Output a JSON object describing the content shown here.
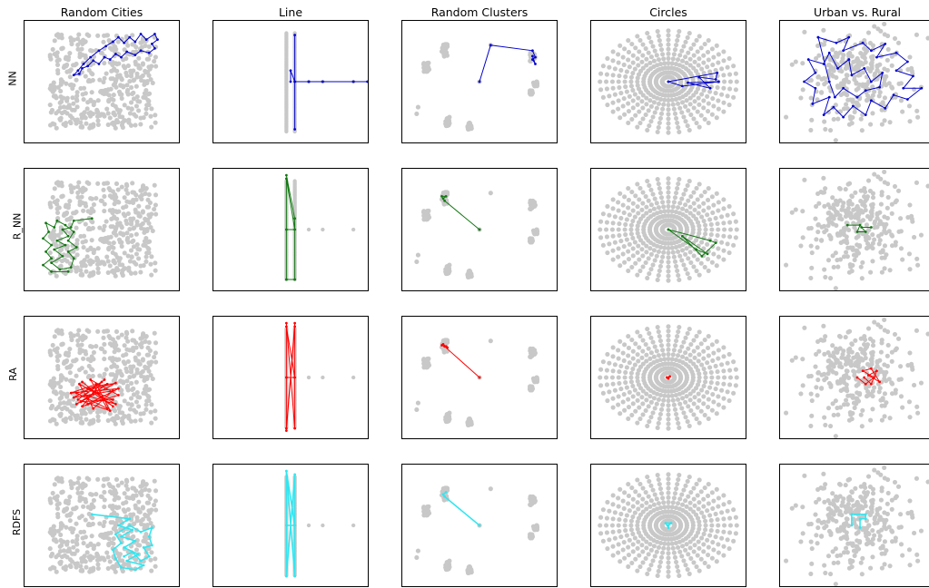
{
  "chart_data": {
    "type": "scatter",
    "grid": false,
    "columns": [
      "Random Cities",
      "Line",
      "Random Clusters",
      "Circles",
      "Urban vs. Rural"
    ],
    "rows": [
      {
        "label": "NN",
        "color": "#0000cc"
      },
      {
        "label": "R_NN",
        "color": "#117711"
      },
      {
        "label": "RA",
        "color": "#ff0000"
      },
      {
        "label": "RDFS",
        "color": "#33e6f0"
      }
    ],
    "city_color": "#c8c8c8",
    "scenarios": {
      "random_cities": {
        "count": 420,
        "xlim": [
          0,
          1
        ],
        "ylim": [
          0,
          1
        ]
      },
      "line": {
        "vertical_x": [
          0.47,
          0.53
        ],
        "vertical_y": [
          0.05,
          0.95
        ],
        "extra_points": [
          [
            0.53,
            0.5
          ],
          [
            0.63,
            0.5
          ],
          [
            0.73,
            0.5
          ],
          [
            0.95,
            0.5
          ]
        ]
      },
      "random_clusters": {
        "clusters": [
          [
            0.25,
            0.78,
            0.02,
            0.06
          ],
          [
            0.12,
            0.63,
            0.02,
            0.04
          ],
          [
            0.27,
            0.14,
            0.015,
            0.04
          ],
          [
            0.43,
            0.1,
            0.015,
            0.03
          ],
          [
            0.88,
            0.72,
            0.02,
            0.04
          ],
          [
            0.9,
            0.48,
            0.015,
            0.02
          ],
          [
            0.87,
            0.4,
            0.01,
            0.02
          ]
        ],
        "singles": [
          [
            0.58,
            0.83
          ],
          [
            0.06,
            0.27
          ],
          [
            0.05,
            0.21
          ],
          [
            0.5,
            0.5
          ]
        ]
      },
      "circles": {
        "rings": 11,
        "spokes": 40,
        "center": [
          0.5,
          0.5
        ],
        "rx": 0.49,
        "ry": 0.46
      },
      "urban_rural": {
        "urban": 260,
        "rural": 40,
        "center": [
          0.5,
          0.52
        ]
      }
    },
    "routes": {
      "NN": {
        "random_cities": [
          [
            0.58,
            0.86
          ],
          [
            0.62,
            0.9
          ],
          [
            0.66,
            0.85
          ],
          [
            0.7,
            0.9
          ],
          [
            0.74,
            0.86
          ],
          [
            0.78,
            0.93
          ],
          [
            0.82,
            0.88
          ],
          [
            0.88,
            0.93
          ],
          [
            0.9,
            0.88
          ],
          [
            0.86,
            0.84
          ],
          [
            0.88,
            0.8
          ],
          [
            0.84,
            0.76
          ],
          [
            0.78,
            0.78
          ],
          [
            0.74,
            0.74
          ],
          [
            0.68,
            0.77
          ],
          [
            0.64,
            0.72
          ],
          [
            0.6,
            0.75
          ],
          [
            0.56,
            0.7
          ],
          [
            0.52,
            0.72
          ],
          [
            0.48,
            0.66
          ],
          [
            0.44,
            0.69
          ],
          [
            0.4,
            0.64
          ],
          [
            0.36,
            0.62
          ],
          [
            0.34,
            0.57
          ],
          [
            0.3,
            0.56
          ],
          [
            0.33,
            0.6
          ],
          [
            0.37,
            0.66
          ],
          [
            0.42,
            0.72
          ],
          [
            0.48,
            0.78
          ],
          [
            0.53,
            0.82
          ],
          [
            0.58,
            0.86
          ]
        ],
        "line": [
          [
            0.53,
            0.92
          ],
          [
            0.53,
            0.07
          ],
          [
            0.53,
            0.5
          ],
          [
            0.63,
            0.5
          ],
          [
            0.73,
            0.5
          ],
          [
            0.95,
            0.5
          ],
          [
            1.05,
            0.5
          ],
          [
            0.53,
            0.5
          ],
          [
            0.5,
            0.6
          ],
          [
            0.5,
            0.5
          ]
        ],
        "random_clusters": [
          [
            0.5,
            0.5
          ],
          [
            0.58,
            0.83
          ],
          [
            0.88,
            0.78
          ],
          [
            0.9,
            0.72
          ],
          [
            0.88,
            0.7
          ],
          [
            0.9,
            0.66
          ],
          [
            0.88,
            0.73
          ]
        ],
        "circles": [
          [
            0.5,
            0.5
          ],
          [
            0.85,
            0.58
          ],
          [
            0.84,
            0.52
          ],
          [
            0.72,
            0.54
          ],
          [
            0.8,
            0.44
          ],
          [
            0.64,
            0.49
          ],
          [
            0.86,
            0.5
          ],
          [
            0.6,
            0.46
          ],
          [
            0.5,
            0.5
          ]
        ],
        "urban_rural": [
          [
            0.22,
            0.9
          ],
          [
            0.35,
            0.85
          ],
          [
            0.44,
            0.9
          ],
          [
            0.4,
            0.78
          ],
          [
            0.54,
            0.85
          ],
          [
            0.6,
            0.78
          ],
          [
            0.7,
            0.84
          ],
          [
            0.64,
            0.72
          ],
          [
            0.78,
            0.76
          ],
          [
            0.86,
            0.68
          ],
          [
            0.78,
            0.6
          ],
          [
            0.9,
            0.55
          ],
          [
            0.83,
            0.44
          ],
          [
            0.96,
            0.44
          ],
          [
            0.86,
            0.34
          ],
          [
            0.76,
            0.38
          ],
          [
            0.7,
            0.26
          ],
          [
            0.6,
            0.33
          ],
          [
            0.56,
            0.2
          ],
          [
            0.47,
            0.28
          ],
          [
            0.4,
            0.18
          ],
          [
            0.33,
            0.27
          ],
          [
            0.26,
            0.2
          ],
          [
            0.3,
            0.36
          ],
          [
            0.18,
            0.3
          ],
          [
            0.2,
            0.44
          ],
          [
            0.12,
            0.5
          ],
          [
            0.2,
            0.58
          ],
          [
            0.15,
            0.7
          ],
          [
            0.26,
            0.66
          ],
          [
            0.3,
            0.76
          ],
          [
            0.36,
            0.62
          ],
          [
            0.44,
            0.7
          ],
          [
            0.46,
            0.56
          ],
          [
            0.55,
            0.62
          ],
          [
            0.6,
            0.5
          ],
          [
            0.68,
            0.58
          ],
          [
            0.66,
            0.45
          ],
          [
            0.56,
            0.42
          ],
          [
            0.5,
            0.36
          ],
          [
            0.4,
            0.44
          ],
          [
            0.34,
            0.36
          ],
          [
            0.3,
            0.5
          ],
          [
            0.22,
            0.9
          ]
        ]
      },
      "R_NN": {
        "random_cities": [
          [
            0.43,
            0.6
          ],
          [
            0.3,
            0.58
          ],
          [
            0.28,
            0.52
          ],
          [
            0.22,
            0.5
          ],
          [
            0.26,
            0.44
          ],
          [
            0.18,
            0.4
          ],
          [
            0.24,
            0.36
          ],
          [
            0.16,
            0.32
          ],
          [
            0.22,
            0.26
          ],
          [
            0.14,
            0.2
          ],
          [
            0.2,
            0.14
          ],
          [
            0.28,
            0.16
          ],
          [
            0.3,
            0.24
          ],
          [
            0.26,
            0.3
          ],
          [
            0.32,
            0.34
          ],
          [
            0.26,
            0.4
          ],
          [
            0.3,
            0.48
          ],
          [
            0.24,
            0.54
          ],
          [
            0.18,
            0.58
          ],
          [
            0.16,
            0.52
          ],
          [
            0.1,
            0.56
          ],
          [
            0.12,
            0.48
          ],
          [
            0.08,
            0.42
          ],
          [
            0.14,
            0.36
          ],
          [
            0.1,
            0.3
          ],
          [
            0.14,
            0.24
          ],
          [
            0.08,
            0.18
          ],
          [
            0.14,
            0.12
          ],
          [
            0.26,
            0.12
          ]
        ],
        "line": [
          [
            0.47,
            0.99
          ],
          [
            0.53,
            0.6
          ],
          [
            0.53,
            0.05
          ],
          [
            0.47,
            0.05
          ],
          [
            0.47,
            0.96
          ],
          [
            0.53,
            0.5
          ],
          [
            0.47,
            0.5
          ]
        ],
        "random_clusters": [
          [
            0.5,
            0.5
          ],
          [
            0.25,
            0.76
          ],
          [
            0.24,
            0.78
          ],
          [
            0.26,
            0.8
          ],
          [
            0.23,
            0.8
          ]
        ],
        "circles": [
          [
            0.5,
            0.5
          ],
          [
            0.8,
            0.4
          ],
          [
            0.84,
            0.38
          ],
          [
            0.74,
            0.26
          ],
          [
            0.6,
            0.44
          ],
          [
            0.78,
            0.28
          ],
          [
            0.7,
            0.32
          ],
          [
            0.5,
            0.5
          ]
        ],
        "urban_rural": [
          [
            0.43,
            0.54
          ],
          [
            0.52,
            0.54
          ],
          [
            0.5,
            0.48
          ],
          [
            0.56,
            0.48
          ],
          [
            0.53,
            0.52
          ],
          [
            0.6,
            0.52
          ]
        ]
      },
      "RA": {
        "random_cities": [
          [
            0.4,
            0.4
          ],
          [
            0.58,
            0.3
          ],
          [
            0.35,
            0.28
          ],
          [
            0.6,
            0.45
          ],
          [
            0.32,
            0.36
          ],
          [
            0.54,
            0.22
          ],
          [
            0.42,
            0.48
          ],
          [
            0.62,
            0.34
          ],
          [
            0.36,
            0.24
          ],
          [
            0.5,
            0.46
          ],
          [
            0.3,
            0.32
          ],
          [
            0.58,
            0.38
          ],
          [
            0.44,
            0.22
          ],
          [
            0.34,
            0.44
          ],
          [
            0.6,
            0.26
          ],
          [
            0.38,
            0.34
          ],
          [
            0.52,
            0.48
          ],
          [
            0.33,
            0.3
          ],
          [
            0.56,
            0.2
          ],
          [
            0.46,
            0.44
          ],
          [
            0.28,
            0.36
          ],
          [
            0.62,
            0.4
          ],
          [
            0.4,
            0.26
          ],
          [
            0.5,
            0.32
          ],
          [
            0.36,
            0.46
          ],
          [
            0.58,
            0.24
          ],
          [
            0.44,
            0.36
          ],
          [
            0.32,
            0.26
          ],
          [
            0.54,
            0.44
          ],
          [
            0.4,
            0.4
          ]
        ],
        "line": [
          [
            0.47,
            0.99
          ],
          [
            0.53,
            0.04
          ],
          [
            0.53,
            0.99
          ],
          [
            0.47,
            0.04
          ],
          [
            0.47,
            0.96
          ],
          [
            0.53,
            0.5
          ],
          [
            0.47,
            0.5
          ],
          [
            0.47,
            0.02
          ],
          [
            0.53,
            0.96
          ]
        ],
        "random_clusters": [
          [
            0.5,
            0.5
          ],
          [
            0.25,
            0.78
          ],
          [
            0.23,
            0.79
          ],
          [
            0.27,
            0.77
          ],
          [
            0.24,
            0.8
          ],
          [
            0.26,
            0.78
          ]
        ],
        "circles": [
          [
            0.49,
            0.5
          ],
          [
            0.51,
            0.51
          ],
          [
            0.5,
            0.49
          ],
          [
            0.49,
            0.5
          ]
        ],
        "urban_rural": [
          [
            0.5,
            0.5
          ],
          [
            0.56,
            0.44
          ],
          [
            0.62,
            0.5
          ],
          [
            0.54,
            0.56
          ],
          [
            0.6,
            0.58
          ],
          [
            0.66,
            0.46
          ],
          [
            0.58,
            0.52
          ],
          [
            0.64,
            0.56
          ],
          [
            0.6,
            0.44
          ],
          [
            0.55,
            0.5
          ]
        ]
      },
      "RDFS": {
        "random_cities": [
          [
            0.43,
            0.6
          ],
          [
            0.7,
            0.56
          ],
          [
            0.62,
            0.5
          ],
          [
            0.72,
            0.46
          ],
          [
            0.64,
            0.4
          ],
          [
            0.74,
            0.36
          ],
          [
            0.66,
            0.3
          ],
          [
            0.76,
            0.24
          ],
          [
            0.68,
            0.18
          ],
          [
            0.8,
            0.14
          ],
          [
            0.74,
            0.1
          ],
          [
            0.64,
            0.12
          ],
          [
            0.6,
            0.2
          ],
          [
            0.58,
            0.28
          ],
          [
            0.64,
            0.34
          ],
          [
            0.6,
            0.42
          ],
          [
            0.7,
            0.5
          ],
          [
            0.78,
            0.44
          ],
          [
            0.86,
            0.48
          ],
          [
            0.84,
            0.4
          ],
          [
            0.86,
            0.32
          ],
          [
            0.8,
            0.3
          ],
          [
            0.84,
            0.22
          ],
          [
            0.78,
            0.18
          ],
          [
            0.72,
            0.26
          ],
          [
            0.66,
            0.22
          ]
        ],
        "line": [
          [
            0.47,
            0.99
          ],
          [
            0.53,
            0.04
          ],
          [
            0.53,
            0.96
          ],
          [
            0.47,
            0.04
          ],
          [
            0.47,
            0.99
          ],
          [
            0.53,
            0.5
          ],
          [
            0.47,
            0.5
          ]
        ],
        "random_clusters": [
          [
            0.5,
            0.5
          ],
          [
            0.25,
            0.76
          ],
          [
            0.24,
            0.78
          ],
          [
            0.26,
            0.8
          ]
        ],
        "circles": [
          [
            0.5,
            0.5
          ],
          [
            0.52,
            0.52
          ],
          [
            0.48,
            0.52
          ],
          [
            0.5,
            0.48
          ]
        ],
        "urban_rural": [
          [
            0.46,
            0.5
          ],
          [
            0.46,
            0.6
          ],
          [
            0.56,
            0.6
          ],
          [
            0.56,
            0.56
          ],
          [
            0.52,
            0.56
          ],
          [
            0.52,
            0.48
          ]
        ]
      }
    }
  }
}
